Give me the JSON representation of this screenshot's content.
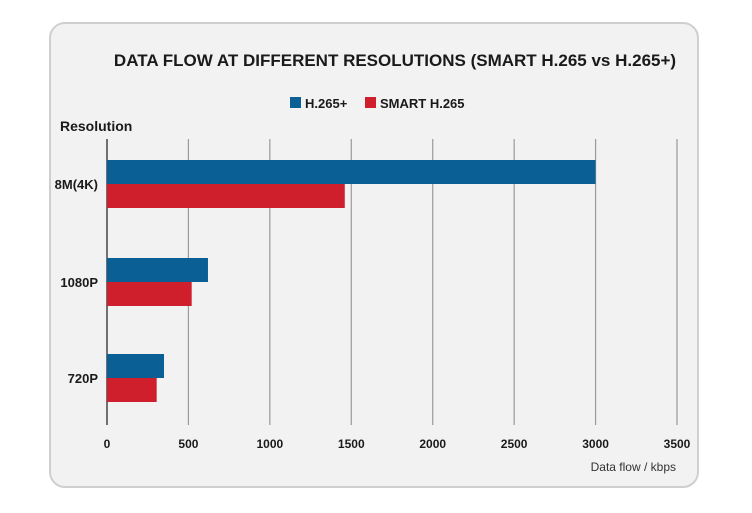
{
  "chart_data": {
    "type": "bar",
    "orientation": "horizontal",
    "title": "DATA FLOW AT DIFFERENT RESOLUTIONS (SMART H.265 vs H.265+)",
    "ylabel": "Resolution",
    "xlabel": "Data flow / kbps",
    "categories": [
      "8M(4K)",
      "1080P",
      "720P"
    ],
    "series": [
      {
        "name": "H.265+",
        "color": "#0a5f94",
        "values": [
          3000,
          620,
          350
        ]
      },
      {
        "name": "SMART H.265",
        "color": "#cf1f2c",
        "values": [
          1460,
          520,
          305
        ]
      }
    ],
    "xlim": [
      0,
      3500
    ],
    "xticks": [
      0,
      500,
      1000,
      1500,
      2000,
      2500,
      3000,
      3500
    ],
    "grid": "vertical",
    "legend_position": "top-center"
  }
}
